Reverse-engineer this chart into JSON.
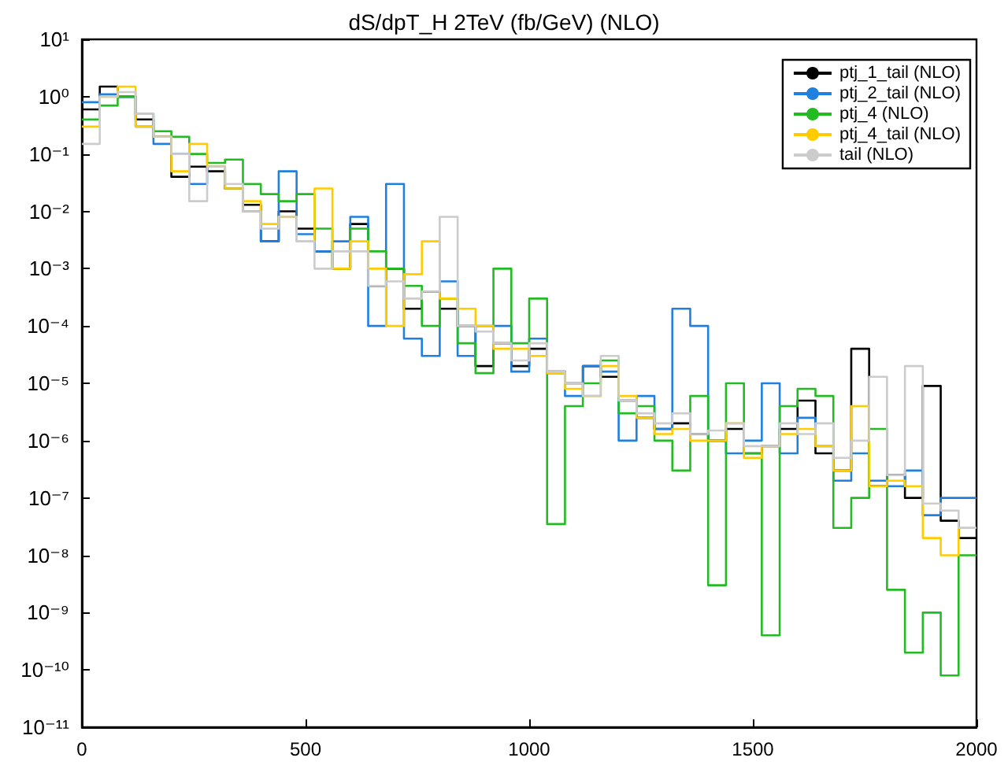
{
  "chart_data": {
    "type": "histogram",
    "title": "dS/dpT_H 2TeV (fb/GeV) (NLO)",
    "bins": [
      0,
      40,
      80,
      120,
      160,
      200,
      240,
      280,
      320,
      360,
      400,
      440,
      480,
      520,
      560,
      600,
      640,
      680,
      720,
      760,
      800,
      840,
      880,
      920,
      960,
      1000,
      1040,
      1080,
      1120,
      1160,
      1200,
      1240,
      1280,
      1320,
      1360,
      1400,
      1440,
      1480,
      1520,
      1560,
      1600,
      1640,
      1680,
      1720,
      1760,
      1800,
      1840,
      1880,
      1920,
      1960,
      2000
    ],
    "series": [
      {
        "name": "ptj_1_tail (NLO)",
        "color": "#000000",
        "values": [
          0.6,
          1.5,
          1,
          0.4,
          0.2,
          0.04,
          0.06,
          0.05,
          0.025,
          0.013,
          0.003,
          0.01,
          0.005,
          0.002,
          0.001,
          0.006,
          0.0005,
          0.001,
          0.0002,
          0.0004,
          0.0002,
          0.0001,
          2e-05,
          5e-05,
          2e-05,
          4e-05,
          1.6e-05,
          1e-05,
          2e-05,
          1.3e-05,
          5e-06,
          2.5e-06,
          1.6e-06,
          2e-06,
          1.3e-06,
          1e-06,
          1.6e-06,
          6e-07,
          8e-07,
          1.6e-06,
          5e-06,
          6e-07,
          3e-07,
          4e-05,
          1.6e-07,
          2.5e-07,
          1e-07,
          9e-06,
          4e-08,
          2e-08
        ]
      },
      {
        "name": "ptj_2_tail (NLO)",
        "color": "#2080e0",
        "values": [
          0.8,
          1.1,
          1,
          0.3,
          0.15,
          0.1,
          0.03,
          0.06,
          0.025,
          0.01,
          0.003,
          0.05,
          0.004,
          0.002,
          0.003,
          0.008,
          0.0001,
          0.03,
          6e-05,
          3e-05,
          0.0006,
          3e-05,
          0.0001,
          0.0001,
          1.6e-05,
          6e-05,
          1.5e-05,
          6e-06,
          2e-05,
          1.6e-05,
          1e-06,
          6e-06,
          1.6e-06,
          0.0002,
          0.0001,
          1e-06,
          6e-07,
          1e-06,
          1e-05,
          6e-07,
          2.5e-06,
          8e-07,
          2e-07,
          6e-07,
          2e-07,
          1.6e-07,
          3e-07,
          5e-08,
          1e-07,
          1e-07
        ]
      },
      {
        "name": "ptj_4 (NLO)",
        "color": "#22bb22",
        "values": [
          0.4,
          0.7,
          1,
          0.5,
          0.25,
          0.2,
          0.1,
          0.07,
          0.08,
          0.03,
          0.02,
          0.015,
          0.02,
          0.005,
          0.001,
          0.005,
          0.002,
          0.001,
          0.0005,
          0.0001,
          0.0003,
          5e-05,
          1.5e-05,
          0.001,
          5e-05,
          0.0003,
          3.5e-08,
          4e-06,
          1e-05,
          2.5e-05,
          3e-06,
          4e-06,
          1e-06,
          3e-07,
          6e-06,
          3e-09,
          1e-05,
          6e-07,
          4e-10,
          4e-06,
          8e-06,
          6e-06,
          3e-08,
          1e-07,
          1.6e-06,
          2.5e-09,
          2e-10,
          1e-09,
          8e-11,
          1e-08
        ]
      },
      {
        "name": "ptj_4_tail (NLO)",
        "color": "#ffcc00",
        "values": [
          0.3,
          1,
          1.5,
          0.3,
          0.2,
          0.05,
          0.15,
          0.06,
          0.025,
          0.015,
          0.006,
          0.008,
          0.003,
          0.025,
          0.001,
          0.003,
          0.001,
          0.0001,
          0.0008,
          0.003,
          0.0003,
          0.0002,
          0.0001,
          4e-05,
          4e-05,
          3e-05,
          1.5e-05,
          8e-06,
          6e-06,
          2e-05,
          6e-06,
          2.5e-06,
          1.3e-06,
          1.6e-06,
          1e-06,
          1e-06,
          2e-06,
          5e-07,
          8e-07,
          1.3e-06,
          1.6e-06,
          8e-07,
          3e-07,
          4e-06,
          1.6e-07,
          2e-07,
          1.6e-07,
          2e-08,
          1e-08,
          3e-08
        ]
      },
      {
        "name": "tail (NLO)",
        "color": "#cccccc",
        "values": [
          0.15,
          1,
          1.2,
          0.5,
          0.2,
          0.1,
          0.015,
          0.06,
          0.03,
          0.01,
          0.005,
          0.008,
          0.003,
          0.001,
          0.002,
          0.002,
          0.0005,
          0.0006,
          0.0003,
          0.0004,
          0.008,
          0.0001,
          8e-05,
          5e-05,
          2.5e-05,
          5e-05,
          1.6e-05,
          1e-05,
          6e-06,
          3e-05,
          5e-06,
          3e-06,
          2e-06,
          3e-06,
          1.3e-06,
          1.5e-06,
          2e-06,
          8e-07,
          8e-07,
          2e-06,
          1.3e-06,
          2e-06,
          5e-07,
          1e-06,
          1.3e-05,
          2.5e-07,
          2e-05,
          8e-08,
          6e-08,
          3e-08
        ]
      }
    ],
    "xlim": [
      0,
      2000
    ],
    "xticks": [
      0,
      500,
      1000,
      1500,
      2000
    ],
    "ylim": [
      1e-11,
      10
    ],
    "log": true,
    "yticks": [
      {
        "value": 1e-11,
        "label": "10⁻¹¹"
      },
      {
        "value": 1e-10,
        "label": "10⁻¹⁰"
      },
      {
        "value": 1e-09,
        "label": "10⁻⁹"
      },
      {
        "value": 1e-08,
        "label": "10⁻⁸"
      },
      {
        "value": 1e-07,
        "label": "10⁻⁷"
      },
      {
        "value": 1e-06,
        "label": "10⁻⁶"
      },
      {
        "value": 1e-05,
        "label": "10⁻⁵"
      },
      {
        "value": 0.0001,
        "label": "10⁻⁴"
      },
      {
        "value": 0.001,
        "label": "10⁻³"
      },
      {
        "value": 0.01,
        "label": "10⁻²"
      },
      {
        "value": 0.1,
        "label": "10⁻¹"
      },
      {
        "value": 1,
        "label": "10⁰"
      },
      {
        "value": 10,
        "label": "10¹"
      }
    ],
    "grid": false,
    "legend": "top right"
  }
}
